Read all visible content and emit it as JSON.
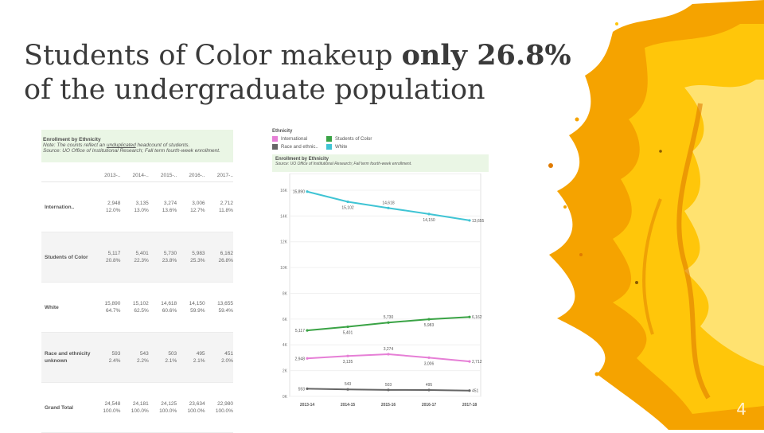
{
  "slide": {
    "title_part1": "Students of Color makeup ",
    "title_bold": "only 26.8%",
    "title_part2": "of the undergraduate population",
    "page_number": "4",
    "accent_colors": [
      "#f5a300",
      "#e07b00",
      "#ffc60a",
      "#ffe270"
    ]
  },
  "table": {
    "title": "Enrollment by Ethnicity",
    "note_prefix": "Note: The counts reflect an ",
    "note_underlined": "unduplicated",
    "note_suffix": " headcount of students.",
    "source": "Source: UO Office of Institutional Research; Fall term fourth-week enrollment.",
    "columns": [
      "2013-..",
      "2014-..",
      "2015-..",
      "2016-..",
      "2017-.."
    ],
    "rows": [
      {
        "label": "Internation..",
        "counts": [
          "2,948",
          "3,135",
          "3,274",
          "3,006",
          "2,712"
        ],
        "percents": [
          "12.0%",
          "13.0%",
          "13.6%",
          "12.7%",
          "11.8%"
        ]
      },
      {
        "label": "Students of Color",
        "counts": [
          "5,117",
          "5,401",
          "5,730",
          "5,983",
          "6,162"
        ],
        "percents": [
          "20.8%",
          "22.3%",
          "23.8%",
          "25.3%",
          "26.8%"
        ]
      },
      {
        "label": "White",
        "counts": [
          "15,890",
          "15,102",
          "14,618",
          "14,150",
          "13,655"
        ],
        "percents": [
          "64.7%",
          "62.5%",
          "60.6%",
          "59.9%",
          "59.4%"
        ]
      },
      {
        "label": "Race and ethnicity unknown",
        "counts": [
          "593",
          "543",
          "503",
          "495",
          "451"
        ],
        "percents": [
          "2.4%",
          "2.2%",
          "2.1%",
          "2.1%",
          "2.0%"
        ]
      },
      {
        "label": "Grand Total",
        "counts": [
          "24,548",
          "24,181",
          "24,125",
          "23,634",
          "22,980"
        ],
        "percents": [
          "100.0%",
          "100.0%",
          "100.0%",
          "100.0%",
          "100.0%"
        ]
      }
    ]
  },
  "chart_data": {
    "type": "line",
    "legend_title": "Ethnicity",
    "legend_entries": [
      "International",
      "Students of Color",
      "Race and ethnic..",
      "White"
    ],
    "title": "Enrollment by Ethnicity",
    "subtitle": "Source: UO Office of Institutional Research; Fall term fourth-week enrollment.",
    "categories": [
      "2013-14",
      "2014-15",
      "2015-16",
      "2016-17",
      "2017-18"
    ],
    "yticks": [
      0,
      2000,
      4000,
      6000,
      8000,
      10000,
      12000,
      14000,
      16000
    ],
    "ytick_labels": [
      "0K",
      "2K",
      "4K",
      "6K",
      "8K",
      "10K",
      "12K",
      "14K",
      "16K"
    ],
    "ylim": [
      0,
      16800
    ],
    "series": [
      {
        "name": "White",
        "color": "#3fc4d4",
        "values": [
          15890,
          15102,
          14618,
          14150,
          13655
        ],
        "labels": [
          "15,890",
          "15,102",
          "14,618",
          "14,150",
          "13,655"
        ]
      },
      {
        "name": "Students of Color",
        "color": "#3aa345",
        "values": [
          5117,
          5401,
          5730,
          5983,
          6162
        ],
        "labels": [
          "5,117",
          "5,401",
          "5,730",
          "5,983",
          "6,162"
        ]
      },
      {
        "name": "International",
        "color": "#e67fd6",
        "values": [
          2948,
          3135,
          3274,
          3006,
          2712
        ],
        "labels": [
          "2,948",
          "3,135",
          "3,274",
          "3,006",
          "2,712"
        ]
      },
      {
        "name": "Race and ethnic..",
        "color": "#666666",
        "values": [
          593,
          543,
          503,
          495,
          451
        ],
        "labels": [
          "593",
          "543",
          "503",
          "495",
          "451"
        ]
      }
    ],
    "legend_colors": [
      "#e67fd6",
      "#3aa345",
      "#666666",
      "#3fc4d4"
    ]
  }
}
